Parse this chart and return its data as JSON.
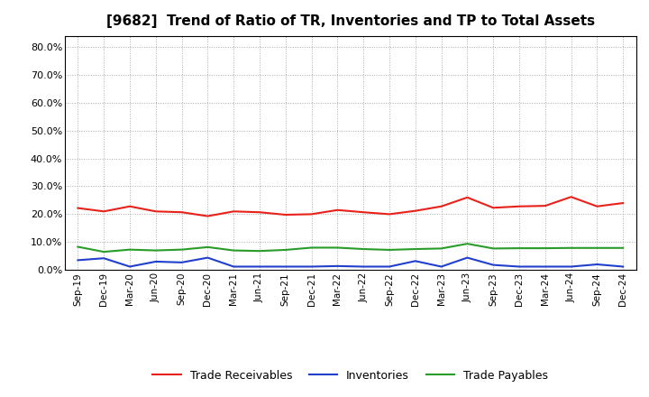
{
  "title": "[9682]  Trend of Ratio of TR, Inventories and TP to Total Assets",
  "labels": [
    "Sep-19",
    "Dec-19",
    "Mar-20",
    "Jun-20",
    "Sep-20",
    "Dec-20",
    "Mar-21",
    "Jun-21",
    "Sep-21",
    "Dec-21",
    "Mar-22",
    "Jun-22",
    "Sep-22",
    "Dec-22",
    "Mar-23",
    "Jun-23",
    "Sep-23",
    "Dec-23",
    "Mar-24",
    "Jun-24",
    "Sep-24",
    "Dec-24"
  ],
  "trade_receivables": [
    0.222,
    0.21,
    0.228,
    0.21,
    0.207,
    0.193,
    0.21,
    0.207,
    0.198,
    0.2,
    0.215,
    0.207,
    0.2,
    0.212,
    0.228,
    0.26,
    0.223,
    0.228,
    0.23,
    0.262,
    0.228,
    0.24
  ],
  "inventories": [
    0.035,
    0.042,
    0.012,
    0.03,
    0.027,
    0.044,
    0.012,
    0.012,
    0.012,
    0.012,
    0.014,
    0.012,
    0.012,
    0.032,
    0.012,
    0.044,
    0.018,
    0.012,
    0.012,
    0.012,
    0.02,
    0.012
  ],
  "trade_payables": [
    0.083,
    0.065,
    0.073,
    0.07,
    0.073,
    0.082,
    0.07,
    0.068,
    0.072,
    0.08,
    0.08,
    0.075,
    0.072,
    0.075,
    0.077,
    0.094,
    0.077,
    0.078,
    0.078,
    0.079,
    0.079,
    0.079
  ],
  "tr_color": "#e8221a",
  "inv_color": "#2040cc",
  "tp_color": "#2a9c2a",
  "ylim": [
    0.0,
    0.84
  ],
  "yticks": [
    0.0,
    0.1,
    0.2,
    0.3,
    0.4,
    0.5,
    0.6,
    0.7,
    0.8
  ],
  "background_color": "#ffffff",
  "grid_color": "#aaaaaa",
  "legend_labels": [
    "Trade Receivables",
    "Inventories",
    "Trade Payables"
  ]
}
